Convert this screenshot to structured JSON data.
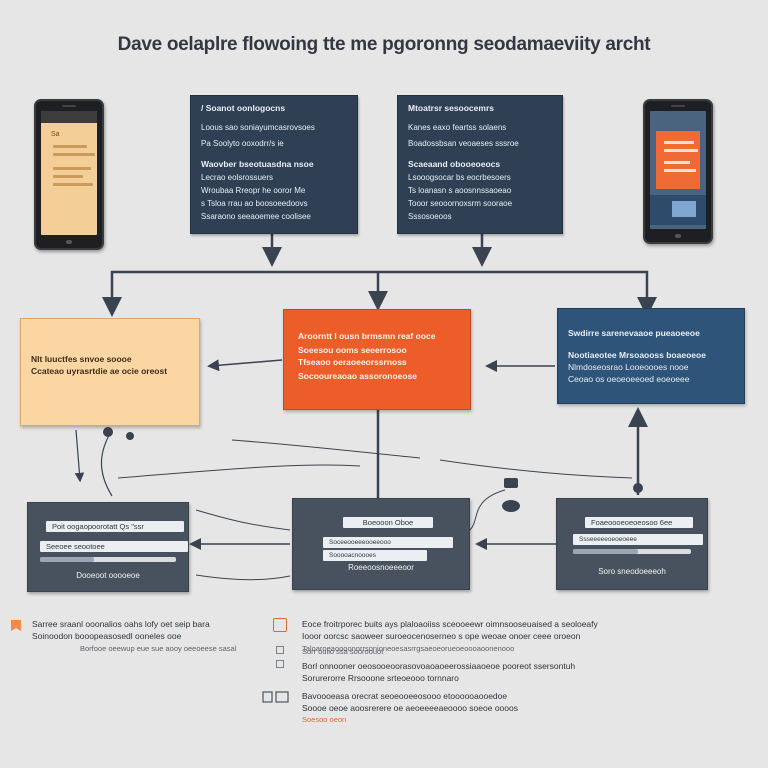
{
  "title": "Dave oelaplre flowoing tte me pgoronng seodamaeviity archt",
  "colors": {
    "background": "#e6e6e7",
    "note_box": "#2f4055",
    "orange": "#ed5d2a",
    "peach": "#fcd6a2",
    "navy": "#2e5479",
    "panel": "#48525e"
  },
  "phones": {
    "left": {
      "screen_label": "Sa"
    },
    "right": {
      "screen_label": ""
    }
  },
  "notes": {
    "left": {
      "heading": "/ Soanot oonlogocns",
      "items": [
        "Loous sao soniayumcasrovsoes",
        "Pa Soolyto ooxodrr/s ie"
      ],
      "subheading": "Waovber bseotuasdna nsoe",
      "subitems": [
        "Lecrao eolsrossuers",
        "Wroubaa Rreopr he ooror Me",
        "s Tsloa rrau ao boosoeedoovs",
        "Ssaraono seeaoemee coolisee"
      ]
    },
    "right": {
      "heading": "Mtoatrsr sesoocemrs",
      "items": [
        "Kanes eaxo feartss solaens",
        "Boadossbsan veoaeses sssroe"
      ],
      "subheading": "Scaeaand obooeoeocs",
      "subitems": [
        "Lsooogsocar bs eocrbesoers",
        "Ts loanasn s aoosnnssaoeao",
        "Tooor seooornoxsrm sooraoe",
        "Sssosoeoos"
      ]
    }
  },
  "middle": {
    "left": {
      "line1": "Nlt luuctfes snvoe soooe",
      "line2": "Ccateao uyrasrtdie ae ocie oreost"
    },
    "center": {
      "heading": "Aroorntt l ousn brmsmn reaf ooce",
      "line1": "Soeesou ooms seeerrosoo",
      "line2": "Tfseaoo oeraoeeorssrnoss",
      "line3": "Socooureaoao assoronoeose"
    },
    "right": {
      "heading": "Swdirre sarenevaaoe pueaoeeoe",
      "line1": "Nootiaeotee Mrsoaooss boaeoeoe",
      "line2": "Nlmdoseosrao Looeoooes nooe",
      "line3": "Ceoao os oeoeoeeoed eoeoeee"
    }
  },
  "panels": {
    "left": {
      "field1": "Poit oogaopoorotatt Qs \"ssr",
      "field2": "Seeoee seootoee",
      "caption": "Dooeoot ooooeoe"
    },
    "center": {
      "field1": "Boeooon Oboe",
      "field2": "Soceeooeeeooeeooo",
      "field3": "Sooooacnoooes",
      "caption": "Roeeoosnoeeeoor"
    },
    "right": {
      "field1": "Foaeoooeoeoeosoo 6ee",
      "field2": "Ssseeeeeoeoeoeee",
      "caption": "Soro sneodoeeeoh"
    }
  },
  "legend": {
    "left": {
      "line1": "Sarree sraanl ooonalios oahs lofy oet seip bara",
      "line2": "Soinoodon booopeasosedl ooneles    ooe",
      "line3": "Borfooe oeewup eue sue aooy oeeoeese sasal"
    },
    "right": {
      "block1_line1": "Eoce froitrporec buits ays plaloaoiiss sceooeewr oimnsooseuaised a seoloeafy",
      "block1_line2": "Iooor oorcsc saoweer suroeocenoserneo s ope weoae onoer ceee oroeon",
      "block1_line3": "Taloaroeaoooonorrsonioneoesasrrgsaeoeorueoeoooaoonenooo",
      "block2_line1": "Sorr ouiio ssa sooroouot",
      "block2_line2": "Borl onnooner oeosooeoorasovoaoaoeerossiaaoeoe pooreot ssersontuh",
      "block2_line3": "Sorurerorre Rrsooone srteoeooo tornnaro",
      "block3_line1": "Bavoooeasa orecrat seoeooeeosooo etoooooaooedoe",
      "block3_line2": "Soooe oeoe aoosrerere oe aeoeeeeaeoooo soeoe oooos",
      "block3_tag": "Soesoo oeon"
    }
  }
}
